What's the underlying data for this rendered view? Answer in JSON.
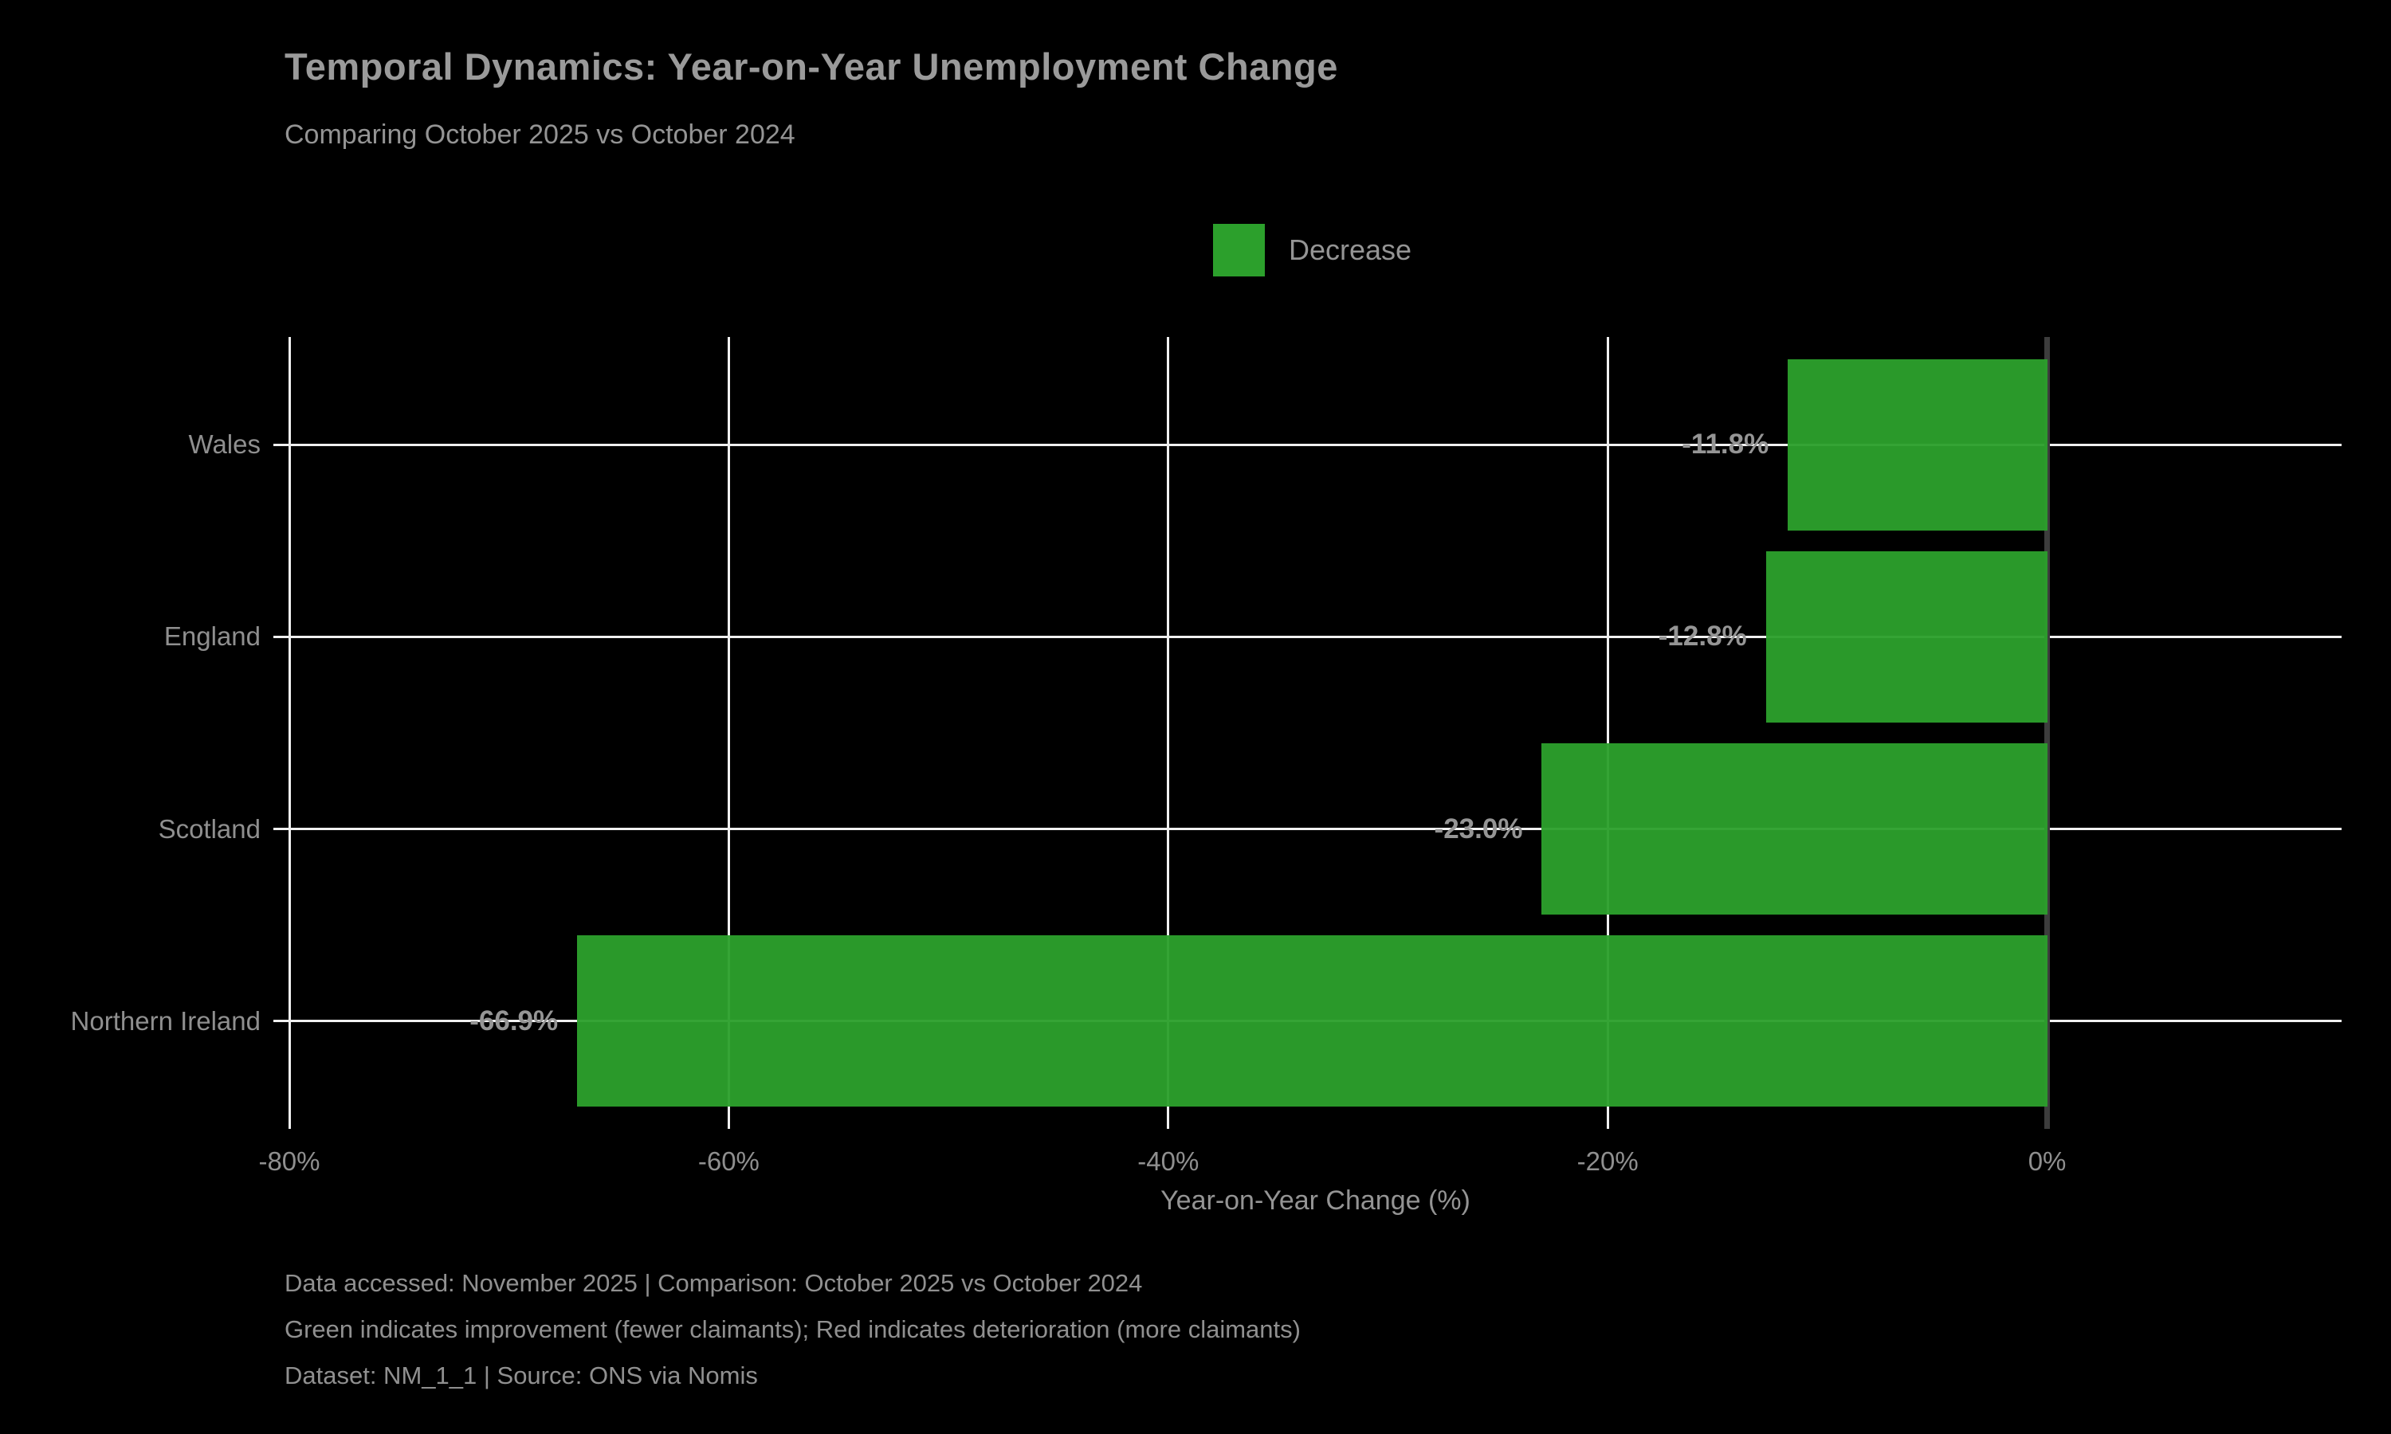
{
  "title": "Temporal Dynamics: Year-on-Year Unemployment Change",
  "subtitle": "Comparing October 2025 vs October 2024",
  "legend": {
    "label": "Decrease",
    "color": "#2ca02c"
  },
  "chart_data": {
    "type": "bar",
    "orientation": "horizontal",
    "categories": [
      "Wales",
      "England",
      "Scotland",
      "Northern Ireland"
    ],
    "values": [
      -11.8,
      -12.8,
      -23.0,
      -66.9
    ],
    "value_labels": [
      "-11.8%",
      "-12.8%",
      "-23.0%",
      "-66.9%"
    ],
    "series_name": "Decrease",
    "bar_color": "#2ca02c",
    "xlabel": "Year-on-Year Change (%)",
    "x_tick_labels": [
      "-80%",
      "-60%",
      "-40%",
      "-20%",
      "0%"
    ],
    "x_tick_values": [
      -80,
      -60,
      -40,
      -20,
      0
    ],
    "xlim": [
      -80,
      13.4
    ],
    "grid": true,
    "gridline_color": "#f0f0f0",
    "zero_line_color": "#3d3d3d",
    "background_color": "#000000",
    "text_color": "#949494",
    "legend_position": "upper center"
  },
  "footer": {
    "line1": "Data accessed: November 2025 | Comparison: October 2025 vs October 2024",
    "line2": "Green indicates improvement (fewer claimants); Red indicates deterioration (more claimants)",
    "line3": "Dataset: NM_1_1 | Source: ONS via Nomis"
  }
}
